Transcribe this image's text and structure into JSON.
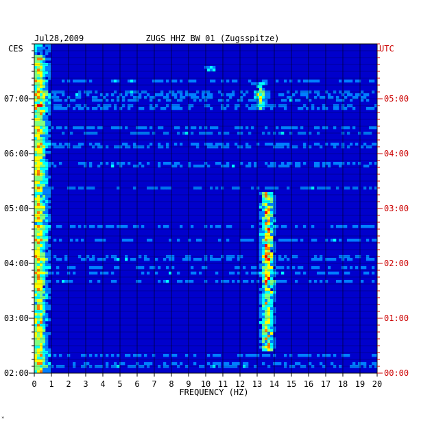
{
  "chart_data": {
    "type": "heatmap",
    "title_left": "Jul28,2009",
    "title_center": "ZUGS HHZ BW 01 (Zugsspitze)",
    "xlabel": "FREQUENCY (HZ)",
    "left_axis_label": "CES",
    "right_axis_label": "UTC",
    "x_ticks": [
      "0",
      "1",
      "2",
      "3",
      "4",
      "5",
      "6",
      "7",
      "8",
      "9",
      "10",
      "11",
      "12",
      "13",
      "14",
      "15",
      "16",
      "17",
      "18",
      "19",
      "20"
    ],
    "xlim": [
      0,
      20
    ],
    "left_ticks": [
      "07:00",
      "06:00",
      "05:00",
      "04:00",
      "03:00",
      "02:00"
    ],
    "right_ticks": [
      "05:00",
      "04:00",
      "03:00",
      "02:00",
      "01:00",
      "00:00"
    ],
    "grid": true,
    "colormap": [
      "#00007f",
      "#0000ff",
      "#007fff",
      "#00ffff",
      "#7fff7f",
      "#ffff00",
      "#ff7f00",
      "#ff0000"
    ],
    "background_color": "#0000cc",
    "hotspots": [
      {
        "freq": 13.6,
        "from_hour": 2.4,
        "to_hour": 5.3,
        "level": "high"
      },
      {
        "freq": 0.3,
        "from_hour": 2.0,
        "to_hour": 7.8,
        "level": "medium"
      },
      {
        "freq": 10.3,
        "from_hour": 7.5,
        "to_hour": 7.6,
        "level": "medium"
      },
      {
        "freq": 13.2,
        "from_hour": 6.8,
        "to_hour": 7.3,
        "level": "medium"
      }
    ]
  },
  "footer": {
    "mark": "*"
  }
}
